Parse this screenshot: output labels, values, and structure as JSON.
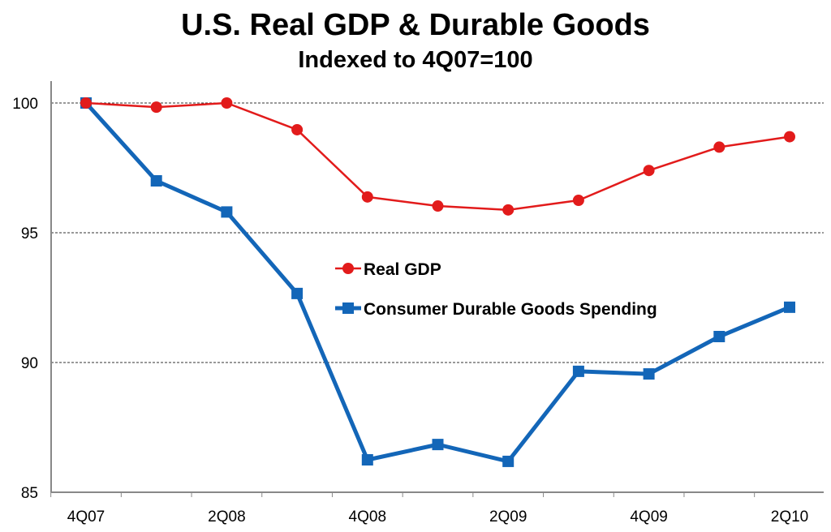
{
  "chart_data": {
    "type": "line",
    "title": "U.S. Real GDP & Durable Goods",
    "subtitle": "Indexed to 4Q07=100",
    "xlabel": "",
    "ylabel": "",
    "x": [
      "4Q07",
      "1Q08",
      "2Q08",
      "3Q08",
      "4Q08",
      "1Q09",
      "2Q09",
      "3Q09",
      "4Q09",
      "1Q10",
      "2Q10"
    ],
    "x_tick_labels": [
      "4Q07",
      "2Q08",
      "4Q08",
      "2Q09",
      "4Q09",
      "2Q10"
    ],
    "ylim": [
      85,
      100
    ],
    "y_ticks": [
      85,
      90,
      95,
      100
    ],
    "grid": "horizontal dashed",
    "legend": "center",
    "series": [
      {
        "name": "Real GDP",
        "color": "#e21b1b",
        "marker": "circle",
        "values": [
          100,
          99.84,
          100,
          98.97,
          96.38,
          96.03,
          95.88,
          96.25,
          97.4,
          98.3,
          98.7
        ]
      },
      {
        "name": "Consumer Durable Goods Spending",
        "color": "#1366b8",
        "marker": "square",
        "values": [
          100,
          97.0,
          95.8,
          92.66,
          86.25,
          86.84,
          86.19,
          89.66,
          89.56,
          91.0,
          92.13
        ]
      }
    ]
  }
}
